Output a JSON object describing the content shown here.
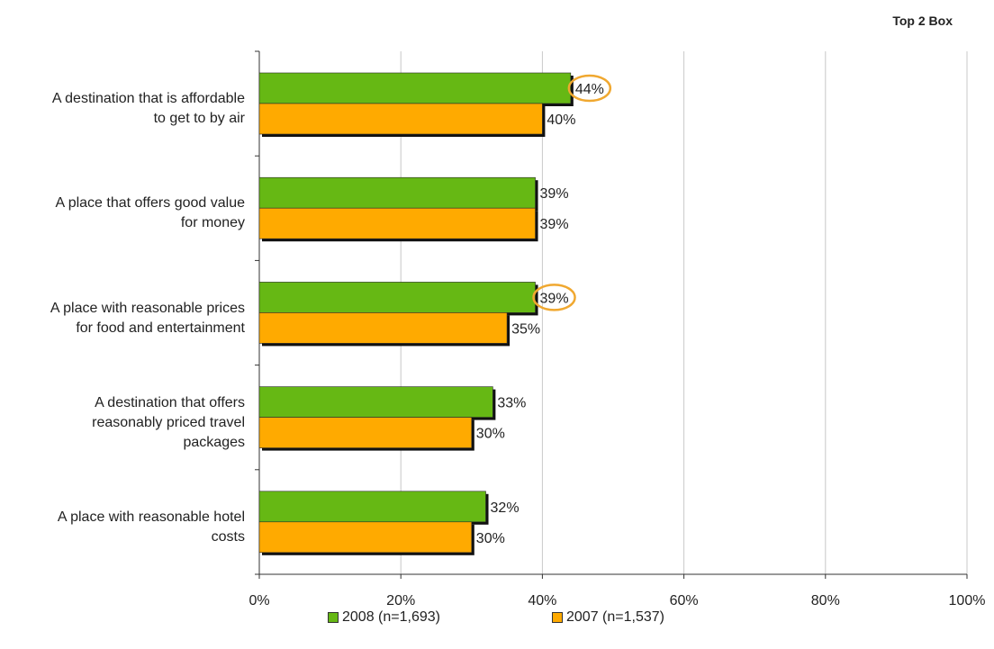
{
  "corner_note": "Top 2 Box",
  "colors": {
    "series_2008": "#66b814",
    "series_2007": "#ffaa00",
    "highlight": "#f0a830",
    "grid": "#c8c8c8",
    "axis": "#333333",
    "text": "#222222"
  },
  "chart_data": {
    "type": "bar",
    "orientation": "horizontal",
    "categories": [
      [
        "A destination that is affordable",
        "to get to by air"
      ],
      [
        "A place that offers good value",
        "for money"
      ],
      [
        "A place with reasonable prices",
        "for food and entertainment"
      ],
      [
        "A destination that offers",
        "reasonably priced travel",
        "packages"
      ],
      [
        "A place with reasonable hotel",
        "costs"
      ]
    ],
    "series": [
      {
        "name": "2008 (n=1,693)",
        "values": [
          44,
          39,
          39,
          33,
          32
        ],
        "labels": [
          "44%",
          "39%",
          "39%",
          "33%",
          "32%"
        ],
        "highlighted": [
          true,
          false,
          true,
          false,
          false
        ]
      },
      {
        "name": "2007 (n=1,537)",
        "values": [
          40,
          39,
          35,
          30,
          30
        ],
        "labels": [
          "40%",
          "39%",
          "35%",
          "30%",
          "30%"
        ],
        "highlighted": [
          false,
          false,
          false,
          false,
          false
        ]
      }
    ],
    "xlim": [
      0,
      100
    ],
    "xticks": [
      "0%",
      "20%",
      "40%",
      "60%",
      "80%",
      "100%"
    ],
    "grid": true,
    "legend_position": "bottom"
  }
}
